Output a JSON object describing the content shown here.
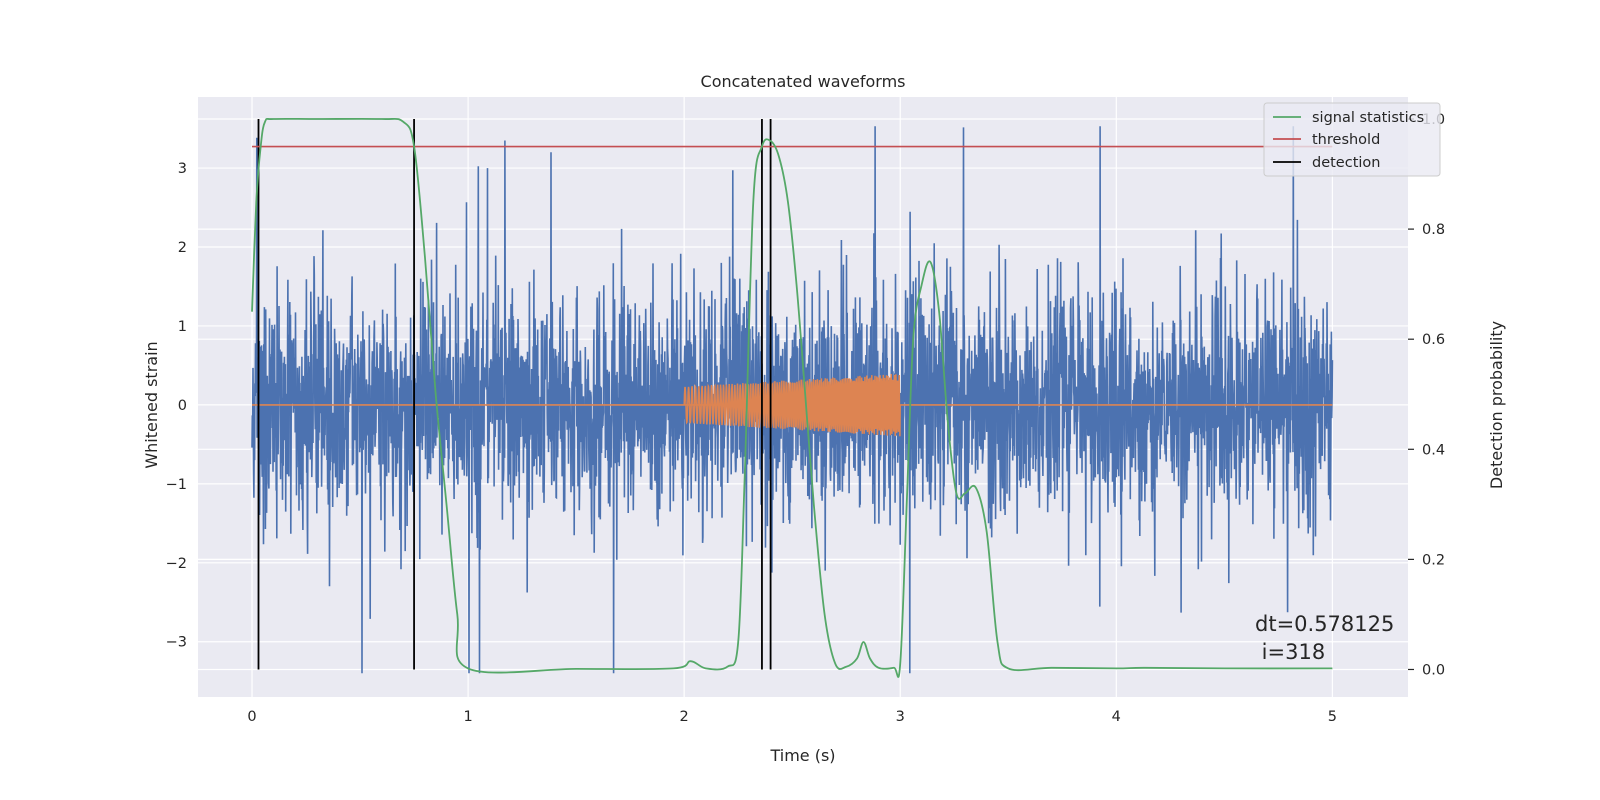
{
  "chart_data": {
    "type": "line",
    "title": "Concatenated waveforms",
    "xlabel": "Time (s)",
    "ylabel": "Whitened strain",
    "y2label": "Detection probability",
    "xlim": [
      -0.25,
      5.35
    ],
    "ylim": [
      -3.7,
      3.9
    ],
    "y2lim": [
      -0.05,
      1.04
    ],
    "x_ticks": [
      0,
      1,
      2,
      3,
      4,
      5
    ],
    "y_ticks": [
      -3,
      -2,
      -1,
      0,
      1,
      2,
      3
    ],
    "y2_ticks": [
      0.0,
      0.2,
      0.4,
      0.6,
      0.8,
      1.0
    ],
    "x_tick_labels": [
      "0",
      "1",
      "2",
      "3",
      "4",
      "5"
    ],
    "y_tick_labels": [
      "−3",
      "−2",
      "−1",
      "0",
      "1",
      "2",
      "3"
    ],
    "y2_tick_labels": [
      "0.0",
      "0.2",
      "0.4",
      "0.6",
      "0.8",
      "1.0"
    ],
    "grid": true,
    "legend_position": "top-right",
    "colors": {
      "strain": "#4c72b0",
      "injection": "#dd8452",
      "signal_statistics": "#55a868",
      "threshold": "#c44e52",
      "detection": "#000000",
      "background": "#eaeaf2",
      "grid": "#ffffff"
    },
    "series": [
      {
        "name": "signal statistics",
        "axis": "right",
        "x": [
          0.0,
          0.02,
          0.04,
          0.06,
          0.1,
          0.3,
          0.6,
          0.7,
          0.75,
          0.8,
          0.85,
          0.9,
          0.95,
          1.0,
          1.5,
          1.95,
          2.03,
          2.1,
          2.2,
          2.25,
          2.28,
          2.32,
          2.36,
          2.4,
          2.44,
          2.48,
          2.52,
          2.56,
          2.6,
          2.65,
          2.7,
          2.75,
          2.8,
          2.83,
          2.86,
          2.9,
          2.97,
          3.0,
          3.03,
          3.06,
          3.1,
          3.14,
          3.18,
          3.22,
          3.26,
          3.3,
          3.35,
          3.4,
          3.45,
          3.5,
          3.7,
          4.0,
          4.13,
          4.5,
          5.0
        ],
        "y": [
          0.65,
          0.85,
          0.95,
          0.995,
          1.0,
          1.0,
          1.0,
          0.995,
          0.95,
          0.75,
          0.5,
          0.3,
          0.1,
          0.002,
          0.001,
          0.002,
          0.015,
          0.002,
          0.005,
          0.05,
          0.35,
          0.85,
          0.95,
          0.96,
          0.93,
          0.85,
          0.7,
          0.5,
          0.3,
          0.1,
          0.01,
          0.005,
          0.02,
          0.05,
          0.02,
          0.003,
          0.003,
          0.01,
          0.3,
          0.6,
          0.7,
          0.74,
          0.65,
          0.45,
          0.32,
          0.32,
          0.33,
          0.25,
          0.05,
          0.002,
          0.003,
          0.002,
          0.003,
          0.002,
          0.002
        ]
      },
      {
        "name": "threshold",
        "axis": "right",
        "x": [
          0.0,
          5.0
        ],
        "y": [
          0.95,
          0.95
        ]
      },
      {
        "name": "detection",
        "axis": "right",
        "x_lines": [
          0.03,
          0.75,
          2.36,
          2.4
        ],
        "y_range": [
          0.0,
          1.0
        ]
      }
    ],
    "strain": {
      "axis": "left",
      "x_range": [
        0.0,
        5.0
      ],
      "amplitude_envelope": 3.53,
      "min_value": -3.4
    },
    "injection": {
      "axis": "left",
      "x_range": [
        2.0,
        3.0
      ],
      "amplitude_start": 0.23,
      "amplitude_end": 0.4,
      "baseline": 0.0
    },
    "legend": [
      "signal statistics",
      "threshold",
      "detection"
    ],
    "annotation": {
      "line1": "dt=0.578125",
      "line2": " i=318",
      "x": 4.5,
      "y": -2.6
    }
  }
}
